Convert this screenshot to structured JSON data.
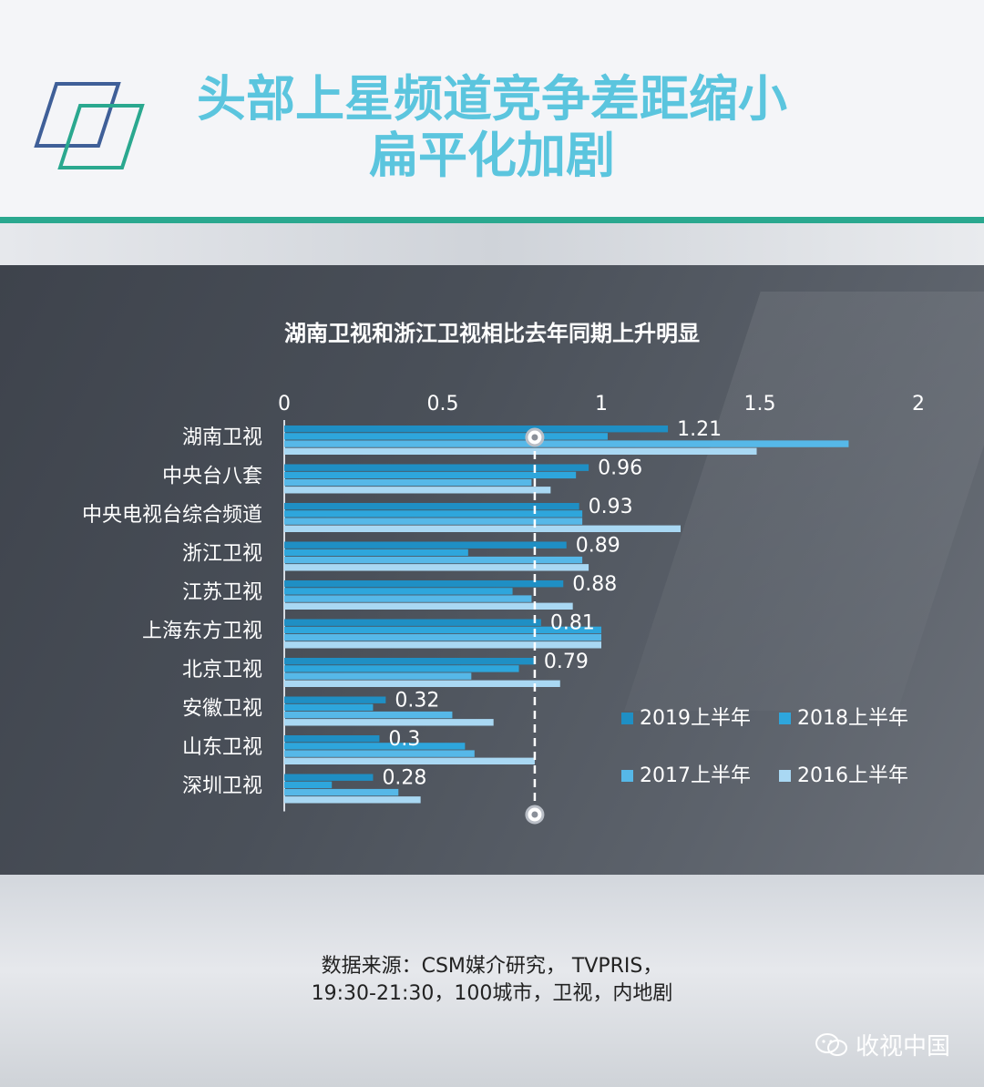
{
  "header": {
    "title_line1": "头部上星频道竞争差距缩小",
    "title_line2": "扁平化加剧"
  },
  "colors": {
    "accent_green": "#2aa88f",
    "title_blue": "#5bc5de",
    "series": [
      "#1f8fc4",
      "#2ea6dc",
      "#56b8e8",
      "#a9d8f3"
    ]
  },
  "chart_data": {
    "type": "bar",
    "orientation": "horizontal",
    "title": "湖南卫视和浙江卫视相比去年同期上升明显",
    "categories": [
      "湖南卫视",
      "中央台八套",
      "中央电视台综合频道",
      "浙江卫视",
      "江苏卫视",
      "上海东方卫视",
      "北京卫视",
      "安徽卫视",
      "山东卫视",
      "深圳卫视"
    ],
    "series": [
      {
        "name": "2019上半年",
        "values": [
          1.21,
          0.96,
          0.93,
          0.89,
          0.88,
          0.81,
          0.79,
          0.32,
          0.3,
          0.28
        ]
      },
      {
        "name": "2018上半年",
        "values": [
          1.02,
          0.92,
          0.94,
          0.58,
          0.72,
          1.0,
          0.74,
          0.28,
          0.57,
          0.15
        ]
      },
      {
        "name": "2017上半年",
        "values": [
          1.78,
          0.78,
          0.94,
          0.94,
          0.78,
          1.0,
          0.59,
          0.53,
          0.6,
          0.36
        ]
      },
      {
        "name": "2016上半年",
        "values": [
          1.49,
          0.84,
          1.25,
          0.96,
          0.91,
          1.0,
          0.87,
          0.66,
          0.79,
          0.43
        ]
      }
    ],
    "data_labels": [
      "1.21",
      "0.96",
      "0.93",
      "0.89",
      "0.88",
      "0.81",
      "0.79",
      "0.32",
      "0.3",
      "0.28"
    ],
    "xlim": [
      0,
      2
    ],
    "ticks": [
      "0",
      "0.5",
      "1",
      "1.5",
      "2"
    ],
    "tick_values": [
      0,
      0.5,
      1,
      1.5,
      2
    ],
    "reference_line": 0.79,
    "grid": false,
    "legend_position": "bottom-right"
  },
  "footer": {
    "source_line1": "数据来源：CSM媒介研究， TVPRIS，",
    "source_line2": "19:30-21:30，100城市，卫视，内地剧",
    "brand": "收视中国"
  }
}
